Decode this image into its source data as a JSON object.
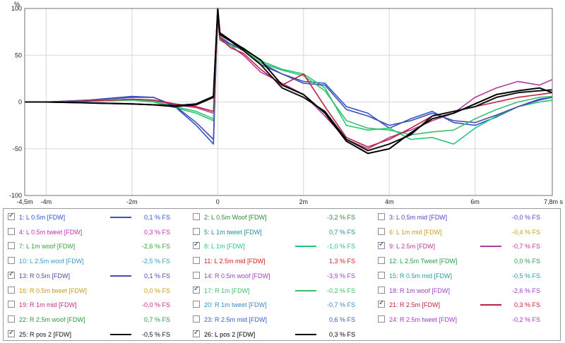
{
  "chart_data": {
    "type": "line",
    "ylabel": "%",
    "x_unit_label": "s",
    "xlim": [
      -4.5,
      7.8
    ],
    "ylim": [
      -100,
      100
    ],
    "x_tick_labels": [
      {
        "x": -4.5,
        "label": "-4,5m"
      },
      {
        "x": -4,
        "label": "-4m"
      },
      {
        "x": -2,
        "label": "-2m"
      },
      {
        "x": 0,
        "label": "0"
      },
      {
        "x": 2,
        "label": "2m"
      },
      {
        "x": 4,
        "label": "4m"
      },
      {
        "x": 6,
        "label": "6m"
      },
      {
        "x": 7.8,
        "label": "7,8m s"
      }
    ],
    "y_tick_labels": [
      {
        "y": 100,
        "label": "100"
      },
      {
        "y": 50,
        "label": "50"
      },
      {
        "y": 0,
        "label": "0"
      },
      {
        "y": -50,
        "label": "-50"
      },
      {
        "y": -100,
        "label": "-100"
      }
    ],
    "grid": true,
    "series": [
      {
        "name": "1: L 0.5m [FDW]",
        "color": "#2a55d0",
        "x": [
          -4.5,
          -4,
          -3,
          -2,
          -1.5,
          -1,
          -0.5,
          -0.1,
          0,
          0.05,
          0.3,
          0.6,
          1,
          1.5,
          2,
          2.5,
          3,
          3.5,
          4,
          4.5,
          5,
          5.5,
          6,
          6.5,
          7,
          7.5,
          7.8
        ],
        "y": [
          0,
          0,
          2,
          6,
          5,
          -5,
          -25,
          -45,
          98,
          70,
          62,
          55,
          42,
          30,
          22,
          20,
          -5,
          -12,
          -28,
          -18,
          -10,
          -22,
          -25,
          -16,
          -5,
          3,
          5
        ]
      },
      {
        "name": "8: L 1m [FDW]",
        "color": "#22c87a",
        "x": [
          -4.5,
          -4,
          -3,
          -2,
          -1.5,
          -1,
          -0.5,
          -0.1,
          0,
          0.05,
          0.3,
          0.6,
          1,
          1.5,
          2,
          2.5,
          3,
          3.5,
          4,
          4.5,
          5,
          5.5,
          6,
          6.5,
          7,
          7.5,
          7.8
        ],
        "y": [
          0,
          0,
          1,
          2,
          0,
          -6,
          -12,
          -20,
          90,
          68,
          62,
          58,
          44,
          35,
          30,
          15,
          -25,
          -30,
          -28,
          -40,
          -38,
          -45,
          -28,
          -15,
          -5,
          0,
          2
        ]
      },
      {
        "name": "9: L  2.5m [FDW]",
        "color": "#b23a9a",
        "x": [
          -4.5,
          -4,
          -3,
          -2,
          -1.5,
          -1,
          -0.5,
          -0.1,
          0,
          0.05,
          0.3,
          0.6,
          1,
          1.5,
          2,
          2.5,
          3,
          3.5,
          4,
          4.5,
          5,
          5.5,
          6,
          6.5,
          7,
          7.5,
          7.8
        ],
        "y": [
          0,
          0,
          1,
          3,
          2,
          -3,
          -6,
          -12,
          92,
          70,
          60,
          50,
          32,
          20,
          8,
          -15,
          -40,
          -50,
          -38,
          -30,
          -20,
          -12,
          5,
          15,
          22,
          18,
          24
        ]
      },
      {
        "name": "13: R 0.5m [FDW]",
        "color": "#4a4aa8",
        "x": [
          -4.5,
          -4,
          -3,
          -2,
          -1.5,
          -1,
          -0.5,
          -0.1,
          0,
          0.05,
          0.3,
          0.6,
          1,
          1.5,
          2,
          2.5,
          3,
          3.5,
          4,
          4.5,
          5,
          5.5,
          6,
          6.5,
          7,
          7.5,
          7.8
        ],
        "y": [
          0,
          0,
          2,
          5,
          5,
          -4,
          -22,
          -40,
          97,
          68,
          62,
          55,
          40,
          30,
          20,
          18,
          -8,
          -15,
          -25,
          -20,
          -12,
          -20,
          -22,
          -14,
          -5,
          2,
          5
        ]
      },
      {
        "name": "17: R 1m [FDW]",
        "color": "#3dbf6a",
        "x": [
          -4.5,
          -4,
          -3,
          -2,
          -1.5,
          -1,
          -0.5,
          -0.1,
          0,
          0.05,
          0.3,
          0.6,
          1,
          1.5,
          2,
          2.5,
          3,
          3.5,
          4,
          4.5,
          5,
          5.5,
          6,
          6.5,
          7,
          7.5,
          7.8
        ],
        "y": [
          0,
          0,
          1,
          2,
          1,
          -5,
          -10,
          -18,
          88,
          66,
          60,
          56,
          42,
          34,
          28,
          12,
          -20,
          -28,
          -30,
          -35,
          -32,
          -30,
          -18,
          -8,
          0,
          5,
          6
        ]
      },
      {
        "name": "21: R 2.5m [FDW]",
        "color": "#c02040",
        "x": [
          -4.5,
          -4,
          -3,
          -2,
          -1.5,
          -1,
          -0.5,
          -0.1,
          0,
          0.05,
          0.3,
          0.6,
          1,
          1.5,
          2,
          2.5,
          3,
          3.5,
          4,
          4.5,
          5,
          5.5,
          6,
          6.5,
          7,
          7.5,
          7.8
        ],
        "y": [
          0,
          0,
          1,
          3,
          2,
          -2,
          -5,
          -10,
          90,
          68,
          58,
          52,
          35,
          18,
          30,
          -5,
          -38,
          -48,
          -40,
          -28,
          -15,
          -10,
          -5,
          0,
          5,
          8,
          10
        ]
      },
      {
        "name": "25: R pos 2 [FDW]",
        "color": "#111111",
        "x": [
          -4.5,
          -4,
          -3,
          -2,
          -1.5,
          -1,
          -0.5,
          -0.1,
          0,
          0.05,
          0.3,
          0.6,
          1,
          1.5,
          2,
          2.5,
          3,
          3.5,
          4,
          4.5,
          5,
          5.5,
          6,
          6.5,
          7,
          7.5,
          7.8
        ],
        "y": [
          0,
          0,
          -1,
          -2,
          -3,
          -5,
          -3,
          5,
          99,
          72,
          65,
          55,
          40,
          15,
          5,
          -10,
          -40,
          -52,
          -45,
          -35,
          -15,
          -10,
          -5,
          5,
          10,
          12,
          13
        ]
      },
      {
        "name": "26: L pos 2 [FDW]",
        "color": "#000000",
        "x": [
          -4.5,
          -4,
          -3,
          -2,
          -1.5,
          -1,
          -0.5,
          -0.1,
          0,
          0.05,
          0.3,
          0.6,
          1,
          1.5,
          2,
          2.5,
          3,
          3.5,
          4,
          4.5,
          5,
          5.5,
          6,
          6.5,
          7,
          7.5,
          7.8
        ],
        "y": [
          0,
          0,
          -1,
          -2,
          -3,
          -4,
          -2,
          6,
          100,
          74,
          66,
          57,
          45,
          18,
          8,
          -12,
          -42,
          -55,
          -50,
          -33,
          -18,
          -12,
          -2,
          8,
          12,
          15,
          10
        ]
      }
    ]
  },
  "legend": [
    {
      "name": "1: L 0.5m [FDW]",
      "value": "0,1 % FS",
      "checked": true,
      "color": "#2a55d0",
      "swatch": true
    },
    {
      "name": "2: L 0.5m Woof [FDW]",
      "value": "-3,2 % FS",
      "checked": false,
      "color": "#2f8a2f",
      "swatch": false
    },
    {
      "name": "3: L 0.5m mid [FDW]",
      "value": "-0,0 % FS",
      "checked": false,
      "color": "#4a4ac8",
      "swatch": false
    },
    {
      "name": "4: L 0.5m tweet [FDW]",
      "value": "0,3 % FS",
      "checked": false,
      "color": "#c030b0",
      "swatch": false
    },
    {
      "name": "5: L 1m tweet [FDW]",
      "value": "0,7 % FS",
      "checked": false,
      "color": "#2a8a9a",
      "swatch": false
    },
    {
      "name": "6: L 1m mid [FDW]",
      "value": "-0,4 % FS",
      "checked": false,
      "color": "#c8a020",
      "swatch": false
    },
    {
      "name": "7: L 1m woof [FDW]",
      "value": "-2,6 % FS",
      "checked": false,
      "color": "#3aa03a",
      "swatch": false
    },
    {
      "name": "8: L 1m [FDW]",
      "value": "-1,0 % FS",
      "checked": true,
      "color": "#22c87a",
      "swatch": true
    },
    {
      "name": "9: L  2.5m [FDW]",
      "value": "-0,7 % FS",
      "checked": true,
      "color": "#b23a9a",
      "swatch": true
    },
    {
      "name": "10: L 2.5m woof [FDW]",
      "value": "-2,5 % FS",
      "checked": false,
      "color": "#3a9ac8",
      "swatch": false
    },
    {
      "name": "11: L 2.5m mid [FDW]",
      "value": "1,3 % FS",
      "checked": false,
      "color": "#d02020",
      "swatch": false
    },
    {
      "name": "12: L 2.5m Tweet [FDW]",
      "value": "0,0 % FS",
      "checked": false,
      "color": "#2a9a4a",
      "swatch": false
    },
    {
      "name": "13: R 0.5m [FDW]",
      "value": "0,1 % FS",
      "checked": true,
      "color": "#4a4aa8",
      "swatch": true
    },
    {
      "name": "14: R 0.5m woof [FDW]",
      "value": "-3,9 % FS",
      "checked": false,
      "color": "#a040c0",
      "swatch": false
    },
    {
      "name": "15: R 0.5m mid [FDW]",
      "value": "-0,5 % FS",
      "checked": false,
      "color": "#2a9aaa",
      "swatch": false
    },
    {
      "name": "16: R 0.5m tweet [FDW]",
      "value": "0,0 % FS",
      "checked": false,
      "color": "#c89a20",
      "swatch": false
    },
    {
      "name": "17: R 1m [FDW]",
      "value": "-0,2 % FS",
      "checked": true,
      "color": "#3dbf6a",
      "swatch": true
    },
    {
      "name": "18: R 1m woof [FDW]",
      "value": "-2,6 % FS",
      "checked": false,
      "color": "#9a40c0",
      "swatch": false
    },
    {
      "name": "19: R 1m mid [FDW]",
      "value": "-0,0 % FS",
      "checked": false,
      "color": "#c03080",
      "swatch": false
    },
    {
      "name": "20: R 1m tweet [FDW]",
      "value": "-0,7 % FS",
      "checked": false,
      "color": "#3a8ac8",
      "swatch": false
    },
    {
      "name": "21: R 2.5m [FDW]",
      "value": "0,3 % FS",
      "checked": true,
      "color": "#c02040",
      "swatch": true
    },
    {
      "name": "22: R 2.5m woof [FDW]",
      "value": "0,7 % FS",
      "checked": false,
      "color": "#2a9a3a",
      "swatch": false
    },
    {
      "name": "23: R 2.5m mid [FDW]",
      "value": "0,6 % FS",
      "checked": false,
      "color": "#3a5ac8",
      "swatch": false
    },
    {
      "name": "24: R 2.5m tweet [FDW]",
      "value": "-0,2 % FS",
      "checked": false,
      "color": "#a040c0",
      "swatch": false
    },
    {
      "name": "25: R pos 2 [FDW]",
      "value": "-0,5 % FS",
      "checked": true,
      "color": "#111111",
      "swatch": true
    },
    {
      "name": "26: L pos 2 [FDW]",
      "value": "0,3 % FS",
      "checked": true,
      "color": "#000000",
      "swatch": true
    }
  ]
}
